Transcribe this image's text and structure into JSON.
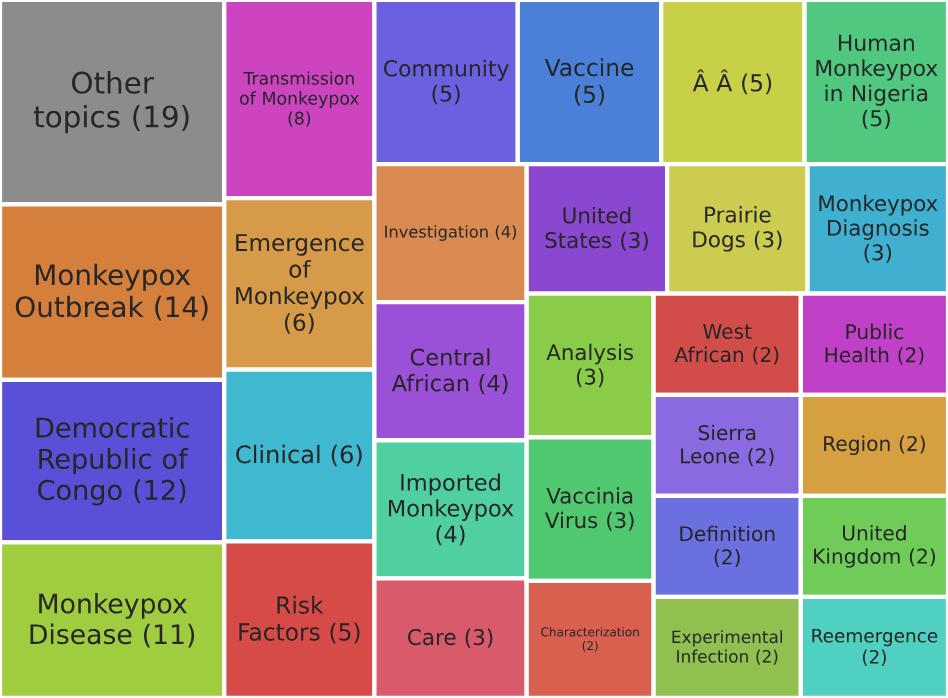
{
  "chart_data": {
    "type": "other",
    "categories": [
      "Other topics",
      "Monkeypox Outbreak",
      "Democratic Republic of Congo",
      "Monkeypox Disease",
      "Transmission of Monkeypox",
      "Emergence of Monkeypox",
      "Clinical",
      "Risk Factors",
      "Community",
      "Vaccine",
      "Â Â",
      "Human Monkeypox in Nigeria",
      "Investigation",
      "Central African",
      "Imported Monkeypox",
      "Care",
      "United States",
      "Prairie Dogs",
      "Monkeypox Diagnosis",
      "Analysis",
      "Vaccinia Virus",
      "Characterization",
      "West African",
      "Public Health",
      "Sierra Leone",
      "Region",
      "Definition",
      "Experimental Infection",
      "United Kingdom",
      "Reemergence"
    ],
    "values": [
      19,
      14,
      12,
      11,
      8,
      6,
      6,
      5,
      5,
      5,
      5,
      5,
      4,
      4,
      4,
      3,
      3,
      3,
      3,
      3,
      3,
      2,
      2,
      2,
      2,
      2,
      2,
      2,
      2,
      2
    ],
    "colors": [
      "#8c8c8c",
      "#d4803c",
      "#5a50d8",
      "#a0cc40",
      "#cc44c0",
      "#d69a48",
      "#40b8d0",
      "#d64a48",
      "#6a60e0",
      "#4a80d8",
      "#c8d048",
      "#50c880",
      "#d98a50",
      "#9b50d8",
      "#50d0a0",
      "#d95a6a",
      "#8a48d0",
      "#cccc50",
      "#40b0d0",
      "#88cc48",
      "#50c870",
      "#d9604f",
      "#d24d4a",
      "#c040c8",
      "#8a6ae0",
      "#d6a040",
      "#6a70e0",
      "#90c050",
      "#70cc58",
      "#50d0c0"
    ],
    "value_labels": [
      "(19)",
      "(14)",
      "(12)",
      "(11)",
      "(8)",
      "(6)",
      "(6)",
      "(5)",
      "(5)",
      "(5)",
      "(5)",
      "(5)",
      "(4)",
      "(4)",
      "(4)",
      "(3)",
      "(3)",
      "(3)",
      "(3)",
      "(3)",
      "(3)",
      "(2)",
      "(2)",
      "(2)",
      "(2)",
      "(2)",
      "(2)",
      "(2)",
      "(2)",
      "(2)"
    ]
  }
}
